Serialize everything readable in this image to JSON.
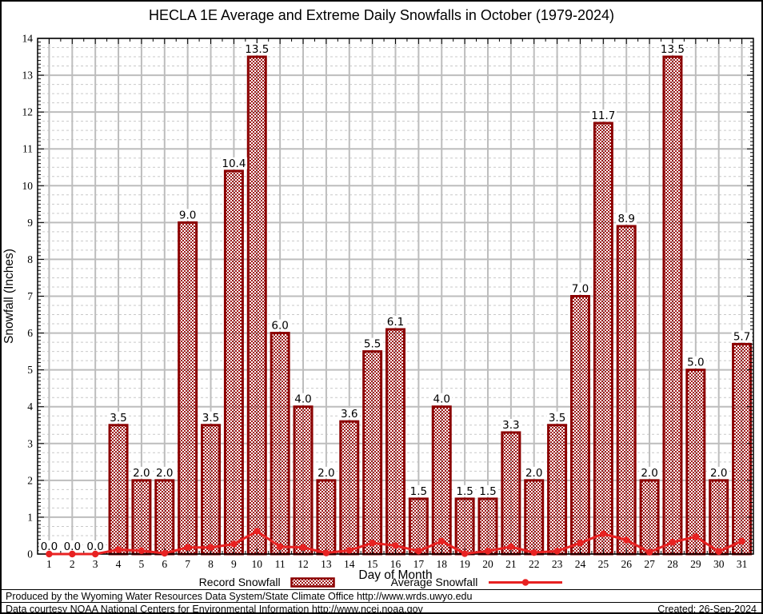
{
  "title": "HECLA 1E Average and Extreme Daily Snowfalls in October (1979-2024)",
  "chart_data": {
    "type": "bar",
    "title": "HECLA 1E Average and Extreme Daily Snowfalls in October (1979-2024)",
    "xlabel": "Day of Month",
    "ylabel": "Snowfall (Inches)",
    "ylim": [
      0,
      14
    ],
    "ytick_step": 1,
    "y_minor_grid_step": 0.25,
    "grid": true,
    "legend_position": "bottom",
    "categories": [
      1,
      2,
      3,
      4,
      5,
      6,
      7,
      8,
      9,
      10,
      11,
      12,
      13,
      14,
      15,
      16,
      17,
      18,
      19,
      20,
      21,
      22,
      23,
      24,
      25,
      26,
      27,
      28,
      29,
      30,
      31
    ],
    "series": [
      {
        "name": "Record Snowfall",
        "type": "bar",
        "values": [
          0.0,
          0.0,
          0.0,
          3.5,
          2.0,
          2.0,
          9.0,
          3.5,
          10.4,
          13.5,
          6.0,
          4.0,
          2.0,
          3.6,
          5.5,
          6.1,
          1.5,
          4.0,
          1.5,
          1.5,
          3.3,
          2.0,
          3.5,
          7.0,
          11.7,
          8.9,
          2.0,
          13.5,
          5.0,
          2.0,
          5.7
        ]
      },
      {
        "name": "Average Snowfall",
        "type": "line",
        "values": [
          0.0,
          0.0,
          0.0,
          0.12,
          0.09,
          0.02,
          0.18,
          0.18,
          0.27,
          0.62,
          0.2,
          0.18,
          0.03,
          0.1,
          0.3,
          0.23,
          0.08,
          0.35,
          0.01,
          0.08,
          0.2,
          0.04,
          0.08,
          0.3,
          0.55,
          0.38,
          0.05,
          0.32,
          0.47,
          0.07,
          0.35
        ]
      }
    ]
  },
  "legend": {
    "record_label": "Record Snowfall",
    "average_label": "Average Snowfall"
  },
  "footer": {
    "line1": "Produced by the Wyoming Water Resources Data System/State Climate Office http://www.wrds.uwyo.edu",
    "line2": "Data courtesy NOAA National Centers for Environmental Information http://www.ncei.noaa.gov",
    "created": "Created: 26-Sep-2024"
  },
  "colors": {
    "bar_border": "#8b0000",
    "bar_hatch": "#9e1a1a",
    "average_line": "#e82222",
    "grid_major": "#bdbdbd",
    "grid_minor": "#c9c9c9",
    "axis": "#000000",
    "background": "#ffffff"
  }
}
